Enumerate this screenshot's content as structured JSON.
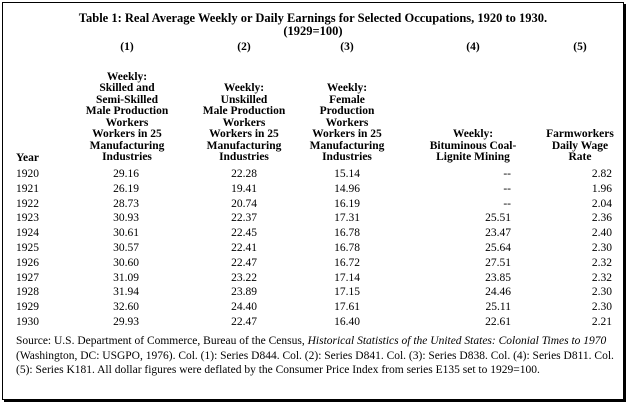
{
  "title_line1": "Table 1: Real Average Weekly or Daily Earnings for Selected Occupations, 1920 to 1930.",
  "title_line2": "(1929=100)",
  "columns": [
    {
      "num": "(1)",
      "lines": [
        "Weekly:",
        "Skilled and",
        "Semi-Skilled",
        "Male Production",
        "Workers",
        "Workers in 25",
        "Manufacturing",
        "Industries"
      ]
    },
    {
      "num": "(2)",
      "lines": [
        "Weekly:",
        "Unskilled",
        "Male Production",
        "Workers",
        "Workers in 25",
        "Manufacturing",
        "Industries"
      ]
    },
    {
      "num": "(3)",
      "lines": [
        "Weekly:",
        "Female",
        "Production",
        "Workers",
        "Workers in 25",
        "Manufacturing",
        "Industries"
      ]
    },
    {
      "num": "(4)",
      "lines": [
        "Weekly:",
        "Bituminous Coal-",
        "Lignite Mining"
      ]
    },
    {
      "num": "(5)",
      "lines": [
        "Farmworkers",
        "Daily Wage",
        "Rate"
      ]
    }
  ],
  "year_header": "Year",
  "rows": [
    [
      "1920",
      "29.16",
      "22.28",
      "15.14",
      "--",
      "2.82"
    ],
    [
      "1921",
      "26.19",
      "19.41",
      "14.96",
      "--",
      "1.96"
    ],
    [
      "1922",
      "28.73",
      "20.74",
      "16.19",
      "--",
      "2.04"
    ],
    [
      "1923",
      "30.93",
      "22.37",
      "17.31",
      "25.51",
      "2.36"
    ],
    [
      "1924",
      "30.61",
      "22.45",
      "16.78",
      "23.47",
      "2.40"
    ],
    [
      "1925",
      "30.57",
      "22.41",
      "16.78",
      "25.64",
      "2.30"
    ],
    [
      "1926",
      "30.60",
      "22.47",
      "16.72",
      "27.51",
      "2.32"
    ],
    [
      "1927",
      "31.09",
      "23.22",
      "17.14",
      "23.85",
      "2.32"
    ],
    [
      "1928",
      "31.94",
      "23.89",
      "17.15",
      "24.46",
      "2.30"
    ],
    [
      "1929",
      "32.60",
      "24.40",
      "17.61",
      "25.11",
      "2.30"
    ],
    [
      "1930",
      "29.93",
      "22.47",
      "16.40",
      "22.61",
      "2.21"
    ]
  ],
  "source": {
    "prefix": "Source: U.S. Department of Commerce, Bureau of the Census, ",
    "italic": "Historical Statistics of the United States: Colonial Times to 1970",
    "suffix": " (Washington, DC: USGPO, 1976). Col. (1): Series D844. Col. (2): Series D841. Col. (3): Series D838. Col. (4): Series D811. Col. (5): Series K181. All dollar figures were deflated by the Consumer Price Index from series E135 set to 1929=100."
  }
}
